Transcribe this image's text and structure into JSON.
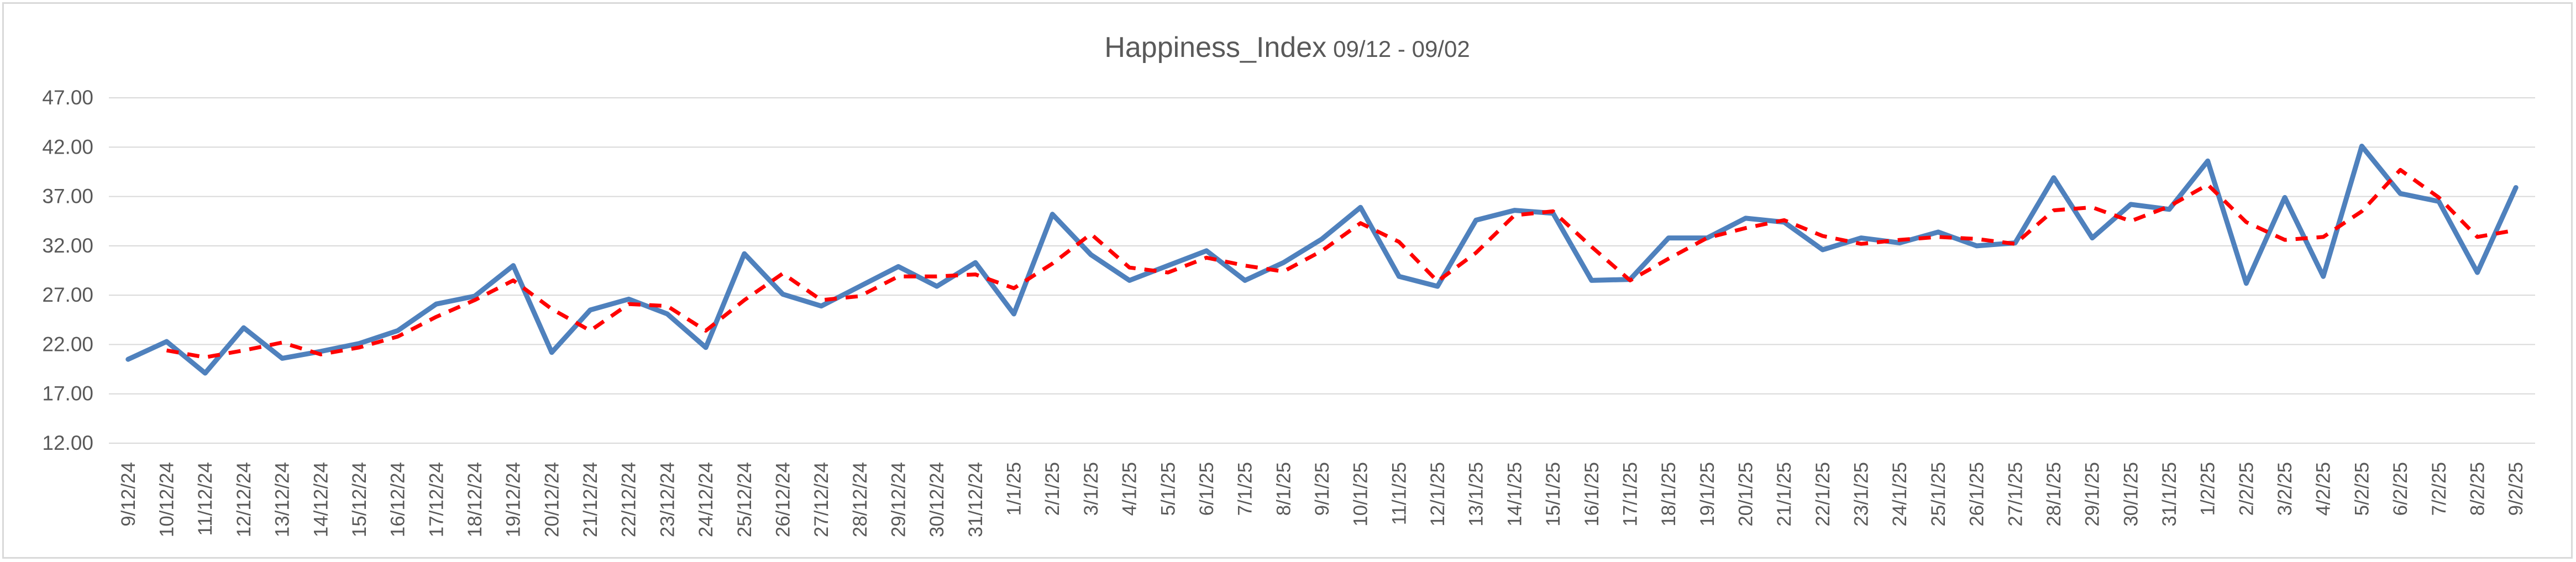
{
  "chart_data": {
    "type": "line",
    "title": "Happiness_Index",
    "subtitle": "09/12 - 09/02",
    "xlabel": "",
    "ylabel": "",
    "ylim": [
      12,
      47
    ],
    "yticks": [
      "12.00",
      "17.00",
      "22.00",
      "27.00",
      "32.00",
      "37.00",
      "42.00",
      "47.00"
    ],
    "grid": true,
    "categories": [
      "9/12/24",
      "10/12/24",
      "11/12/24",
      "12/12/24",
      "13/12/24",
      "14/12/24",
      "15/12/24",
      "16/12/24",
      "17/12/24",
      "18/12/24",
      "19/12/24",
      "20/12/24",
      "21/12/24",
      "22/12/24",
      "23/12/24",
      "24/12/24",
      "25/12/24",
      "26/12/24",
      "27/12/24",
      "28/12/24",
      "29/12/24",
      "30/12/24",
      "31/12/24",
      "1/1/25",
      "2/1/25",
      "3/1/25",
      "4/1/25",
      "5/1/25",
      "6/1/25",
      "7/1/25",
      "8/1/25",
      "9/1/25",
      "10/1/25",
      "11/1/25",
      "12/1/25",
      "13/1/25",
      "14/1/25",
      "15/1/25",
      "16/1/25",
      "17/1/25",
      "18/1/25",
      "19/1/25",
      "20/1/25",
      "21/1/25",
      "22/1/25",
      "23/1/25",
      "24/1/25",
      "25/1/25",
      "26/1/25",
      "27/1/25",
      "28/1/25",
      "29/1/25",
      "30/1/25",
      "31/1/25",
      "1/2/25",
      "2/2/25",
      "3/2/25",
      "4/2/25",
      "5/2/25",
      "6/2/25",
      "7/2/25",
      "8/2/25",
      "9/2/25"
    ],
    "series": [
      {
        "color": "#4f81bd",
        "style": "solid",
        "values": [
          20.5,
          22.3,
          19.1,
          23.7,
          20.6,
          21.3,
          22.1,
          23.4,
          26.1,
          26.9,
          30.0,
          21.2,
          25.5,
          26.6,
          25.1,
          21.7,
          31.2,
          27.1,
          25.9,
          27.9,
          29.9,
          27.9,
          30.3,
          25.1,
          35.2,
          31.1,
          28.5,
          30.0,
          31.5,
          28.5,
          30.3,
          32.7,
          35.9,
          28.9,
          27.9,
          34.6,
          35.6,
          35.3,
          28.5,
          28.6,
          32.8,
          32.8,
          34.8,
          34.4,
          31.6,
          32.8,
          32.3,
          33.4,
          32.0,
          32.3,
          38.9,
          32.8,
          36.2,
          35.7,
          40.6,
          28.2,
          36.9,
          28.9,
          42.1,
          37.3,
          36.5,
          29.3,
          37.9
        ]
      },
      {
        "color": "#ff0000",
        "style": "dashed",
        "values": [
          null,
          21.4,
          20.7,
          21.4,
          22.2,
          21.0,
          21.7,
          22.8,
          24.8,
          26.5,
          28.5,
          25.6,
          23.4,
          26.1,
          25.9,
          23.4,
          26.5,
          29.2,
          26.5,
          26.9,
          28.9,
          28.9,
          29.1,
          27.7,
          30.2,
          33.2,
          29.8,
          29.3,
          30.8,
          30.0,
          29.4,
          31.5,
          34.3,
          32.4,
          28.4,
          31.3,
          35.1,
          35.5,
          31.9,
          28.5,
          30.7,
          32.8,
          33.8,
          34.6,
          33.0,
          32.2,
          32.6,
          32.9,
          32.7,
          32.2,
          35.6,
          35.9,
          34.5,
          36.0,
          38.2,
          34.4,
          32.6,
          32.9,
          35.5,
          39.7,
          36.9,
          32.9,
          33.6
        ]
      }
    ]
  }
}
